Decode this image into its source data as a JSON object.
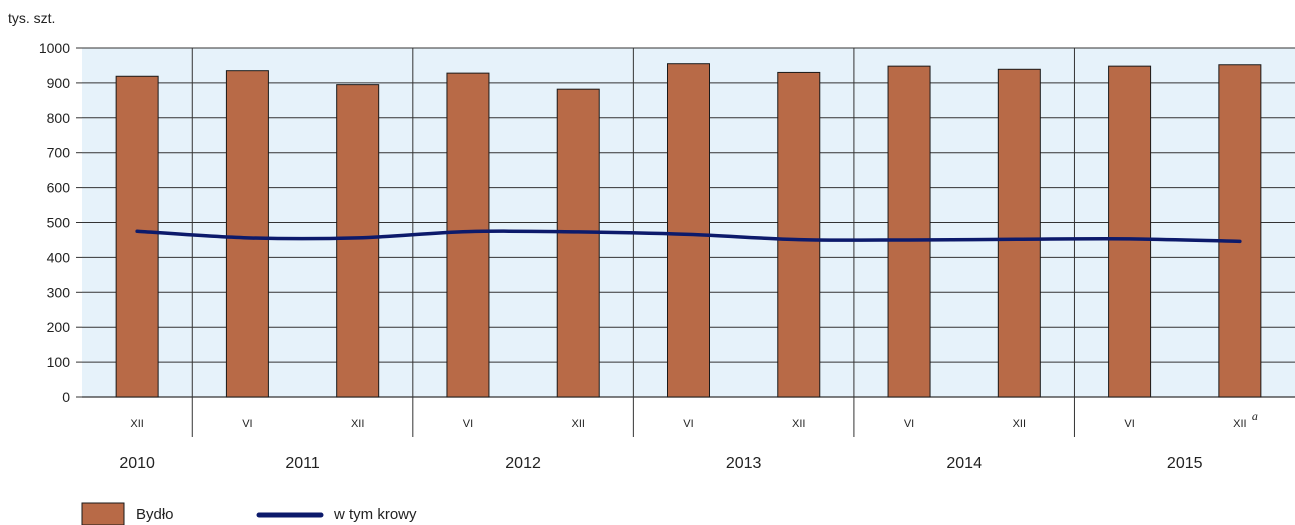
{
  "chart_data": {
    "type": "bar",
    "ylabel": "tys. szt.",
    "ylim": [
      0,
      1000
    ],
    "yticks": [
      0,
      100,
      200,
      300,
      400,
      500,
      600,
      700,
      800,
      900,
      1000
    ],
    "grid": true,
    "legend_position": "bottom-left",
    "years": [
      {
        "label": "2010",
        "slots": 1
      },
      {
        "label": "2011",
        "slots": 2
      },
      {
        "label": "2012",
        "slots": 2
      },
      {
        "label": "2013",
        "slots": 2
      },
      {
        "label": "2014",
        "slots": 2
      },
      {
        "label": "2015",
        "slots": 2
      }
    ],
    "categories": [
      "XII",
      "VI",
      "XII",
      "VI",
      "XII",
      "VI",
      "XII",
      "VI",
      "XII",
      "VI",
      "XII"
    ],
    "last_category_footnote": "a",
    "series": [
      {
        "name": "Bydło",
        "type": "bar",
        "values": [
          919,
          935,
          895,
          928,
          882,
          955,
          930,
          948,
          939,
          948,
          952
        ]
      },
      {
        "name": "w tym krowy",
        "type": "line",
        "values": [
          475,
          456,
          456,
          474,
          473,
          466,
          451,
          450,
          452,
          453,
          446
        ]
      }
    ],
    "colors": {
      "bar": "#b86a47",
      "line": "#0c1a6b",
      "plot_background": "#e6f2fa",
      "grid": "#333333"
    }
  }
}
